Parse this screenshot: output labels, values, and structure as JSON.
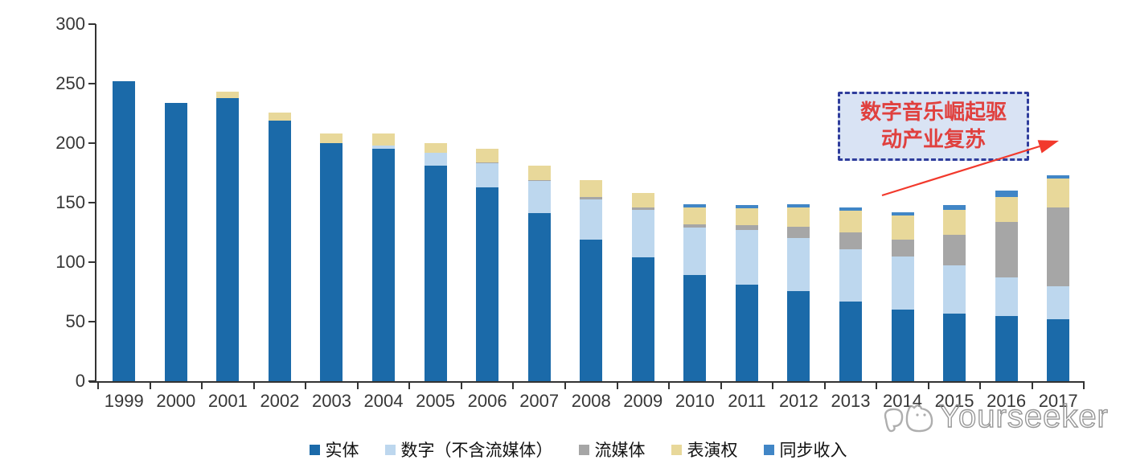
{
  "chart_data": {
    "type": "bar",
    "stacked": true,
    "title": "",
    "xlabel": "",
    "ylabel": "",
    "categories": [
      "1999",
      "2000",
      "2001",
      "2002",
      "2003",
      "2004",
      "2005",
      "2006",
      "2007",
      "2008",
      "2009",
      "2010",
      "2011",
      "2012",
      "2013",
      "2014",
      "2015",
      "2016",
      "2017"
    ],
    "series": [
      {
        "name": "实体",
        "color": "#1B6AA9",
        "values": [
          252,
          234,
          238,
          219,
          200,
          195,
          181,
          163,
          141,
          119,
          104,
          89,
          81,
          76,
          67,
          60,
          57,
          55,
          52
        ]
      },
      {
        "name": "数字（不含流媒体）",
        "color": "#BDD7EE",
        "values": [
          0,
          0,
          0,
          0,
          0,
          3,
          11,
          20,
          27,
          34,
          40,
          40,
          46,
          44,
          44,
          45,
          40,
          32,
          28
        ]
      },
      {
        "name": "流媒体",
        "color": "#A6A6A6",
        "values": [
          0,
          0,
          0,
          0,
          0,
          0,
          0,
          1,
          1,
          2,
          2,
          3,
          4,
          10,
          14,
          14,
          26,
          47,
          66
        ]
      },
      {
        "name": "表演权",
        "color": "#E8D89A",
        "values": [
          0,
          0,
          5,
          7,
          8,
          10,
          8,
          11,
          12,
          14,
          12,
          14,
          14,
          16,
          18,
          20,
          21,
          21,
          24
        ]
      },
      {
        "name": "同步收入",
        "color": "#4186C6",
        "values": [
          0,
          0,
          0,
          0,
          0,
          0,
          0,
          0,
          0,
          0,
          0,
          3,
          3,
          3,
          3,
          3,
          4,
          5,
          3
        ]
      }
    ],
    "ylim": [
      0,
      300
    ],
    "yticks": [
      0,
      50,
      100,
      150,
      200,
      250,
      300
    ],
    "grid": false,
    "legend_position": "bottom"
  },
  "annotation": {
    "line1": "数字音乐崛起驱",
    "line2": "动产业复苏",
    "border_color": "#2F3D9C",
    "fill_color": "#D9E3F4",
    "text_color": "#E0403E",
    "arrow_color": "#F2392C"
  },
  "watermark": {
    "text": "Yourseeker"
  }
}
